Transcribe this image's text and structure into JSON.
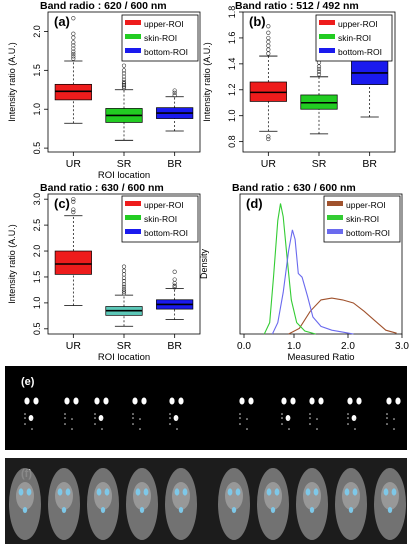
{
  "colors": {
    "upper": "#ee1c1c",
    "skin": "#22cc22",
    "bottom": "#1a1aee",
    "skin_c": "#5cc8b8",
    "density_upper": "#a0522d",
    "density_skin": "#33cc33",
    "density_bottom": "#6a6aee"
  },
  "legend": [
    "upper-ROI",
    "skin-ROI",
    "bottom-ROI"
  ],
  "chart_data": [
    {
      "panel": "(a)",
      "type": "box",
      "title": "Band radio : 620 / 600 nm",
      "xlabel": "ROI location",
      "ylabel": "Intensity ratio (A.U.)",
      "categories": [
        "UR",
        "SR",
        "BR"
      ],
      "ylim": [
        0.45,
        2.25
      ],
      "yticks": [
        "0.5",
        "1.0",
        "1.5",
        "2.0"
      ],
      "ytick_values": [
        0.5,
        1.0,
        1.5,
        2.0
      ],
      "boxes": [
        {
          "name": "UR",
          "color_key": "upper",
          "whisker_low": 0.82,
          "q1": 1.12,
          "median": 1.23,
          "q3": 1.32,
          "whisker_high": 1.62,
          "outliers": [
            1.65,
            1.68,
            1.71,
            1.74,
            1.78,
            1.82,
            1.86,
            1.92,
            1.97,
            2.17
          ]
        },
        {
          "name": "SR",
          "color_key": "skin",
          "whisker_low": 0.6,
          "q1": 0.83,
          "median": 0.92,
          "q3": 1.01,
          "whisker_high": 1.25,
          "outliers": [
            1.27,
            1.29,
            1.31,
            1.33,
            1.35,
            1.38,
            1.42,
            1.46,
            1.5,
            1.56
          ]
        },
        {
          "name": "BR",
          "color_key": "bottom",
          "whisker_low": 0.72,
          "q1": 0.88,
          "median": 0.95,
          "q3": 1.02,
          "whisker_high": 1.16,
          "outliers": [
            1.18,
            1.21,
            1.24
          ]
        }
      ]
    },
    {
      "panel": "(b)",
      "type": "box",
      "title": "Band ratio : 512 / 492 nm",
      "xlabel": "",
      "ylabel": "Intensity ratio (A.U.)",
      "categories": [
        "UR",
        "SR",
        "BR"
      ],
      "ylim": [
        0.72,
        1.8
      ],
      "yticks": [
        "0.8",
        "1.0",
        "1.2",
        "1.4",
        "1.6",
        "1.8"
      ],
      "ytick_values": [
        0.8,
        1.0,
        1.2,
        1.4,
        1.6,
        1.8
      ],
      "boxes": [
        {
          "name": "UR",
          "color_key": "upper",
          "whisker_low": 0.88,
          "q1": 1.11,
          "median": 1.18,
          "q3": 1.26,
          "whisker_high": 1.46,
          "outliers": [
            0.84,
            0.82,
            1.48,
            1.51,
            1.54,
            1.57,
            1.6,
            1.64,
            1.69
          ]
        },
        {
          "name": "SR",
          "color_key": "skin",
          "whisker_low": 0.86,
          "q1": 1.05,
          "median": 1.1,
          "q3": 1.16,
          "whisker_high": 1.3,
          "outliers": [
            1.32,
            1.34,
            1.36,
            1.38,
            1.41,
            1.44,
            1.48
          ]
        },
        {
          "name": "BR",
          "color_key": "bottom",
          "whisker_low": 0.99,
          "q1": 1.24,
          "median": 1.33,
          "q3": 1.43,
          "whisker_high": 1.6,
          "outliers": [
            1.62
          ]
        }
      ]
    },
    {
      "panel": "(c)",
      "type": "box",
      "title": "Band ratio : 630 / 600 nm",
      "xlabel": "ROI location",
      "ylabel": "Intensity ratio (A.U.)",
      "categories": [
        "UR",
        "SR",
        "BR"
      ],
      "ylim": [
        0.4,
        3.1
      ],
      "yticks": [
        "0.5",
        "1.0",
        "1.5",
        "2.0",
        "2.5",
        "3.0"
      ],
      "ytick_values": [
        0.5,
        1.0,
        1.5,
        2.0,
        2.5,
        3.0
      ],
      "boxes": [
        {
          "name": "UR",
          "color_key": "upper",
          "whisker_low": 0.95,
          "q1": 1.55,
          "median": 1.75,
          "q3": 2.0,
          "whisker_high": 2.68,
          "outliers": [
            2.75,
            2.8,
            2.95,
            3.0
          ]
        },
        {
          "name": "SR",
          "color_key": "skin_c",
          "whisker_low": 0.55,
          "q1": 0.76,
          "median": 0.85,
          "q3": 0.93,
          "whisker_high": 1.15,
          "outliers": [
            1.18,
            1.22,
            1.26,
            1.31,
            1.36,
            1.42,
            1.48,
            1.55,
            1.62,
            1.7
          ]
        },
        {
          "name": "BR",
          "color_key": "bottom",
          "whisker_low": 0.68,
          "q1": 0.88,
          "median": 0.97,
          "q3": 1.06,
          "whisker_high": 1.28,
          "outliers": [
            1.3,
            1.33,
            1.38,
            1.45,
            1.6
          ]
        }
      ]
    },
    {
      "panel": "(d)",
      "type": "line",
      "title": "Band ratio : 630 / 600 nm",
      "xlabel": "Measured Ratio",
      "ylabel": "Density",
      "xlim": [
        0.0,
        3.0
      ],
      "xticks": [
        "0.0",
        "1.0",
        "2.0",
        "3.0"
      ],
      "xtick_values": [
        0.0,
        1.0,
        2.0,
        3.0
      ],
      "ylim": [
        0,
        3.7
      ],
      "series": [
        {
          "name": "upper-ROI",
          "color_key": "density_upper",
          "x": [
            0.9,
            1.1,
            1.3,
            1.5,
            1.7,
            1.9,
            2.1,
            2.3,
            2.5,
            2.7,
            2.9
          ],
          "y": [
            0.0,
            0.15,
            0.6,
            0.9,
            0.95,
            0.9,
            0.82,
            0.6,
            0.35,
            0.1,
            0.02
          ]
        },
        {
          "name": "skin-ROI",
          "color_key": "density_skin",
          "x": [
            0.45,
            0.55,
            0.62,
            0.7,
            0.75,
            0.8,
            0.88,
            0.95,
            1.05,
            1.2,
            1.4
          ],
          "y": [
            0.0,
            0.3,
            1.5,
            3.0,
            3.45,
            3.1,
            1.9,
            0.9,
            0.3,
            0.08,
            0.0
          ]
        },
        {
          "name": "bottom-ROI",
          "color_key": "density_bottom",
          "x": [
            0.6,
            0.7,
            0.8,
            0.9,
            0.97,
            1.02,
            1.08,
            1.15,
            1.25,
            1.35,
            1.5,
            1.7,
            1.9,
            2.1
          ],
          "y": [
            0.0,
            0.3,
            1.1,
            2.2,
            2.75,
            2.5,
            1.6,
            1.5,
            1.0,
            0.45,
            0.2,
            0.1,
            0.05,
            0.0
          ]
        }
      ]
    }
  ],
  "images": [
    {
      "label": "(e)",
      "description_key": "binary-mask-strip"
    },
    {
      "label": "(f)",
      "description_key": "overlay-strip"
    }
  ]
}
